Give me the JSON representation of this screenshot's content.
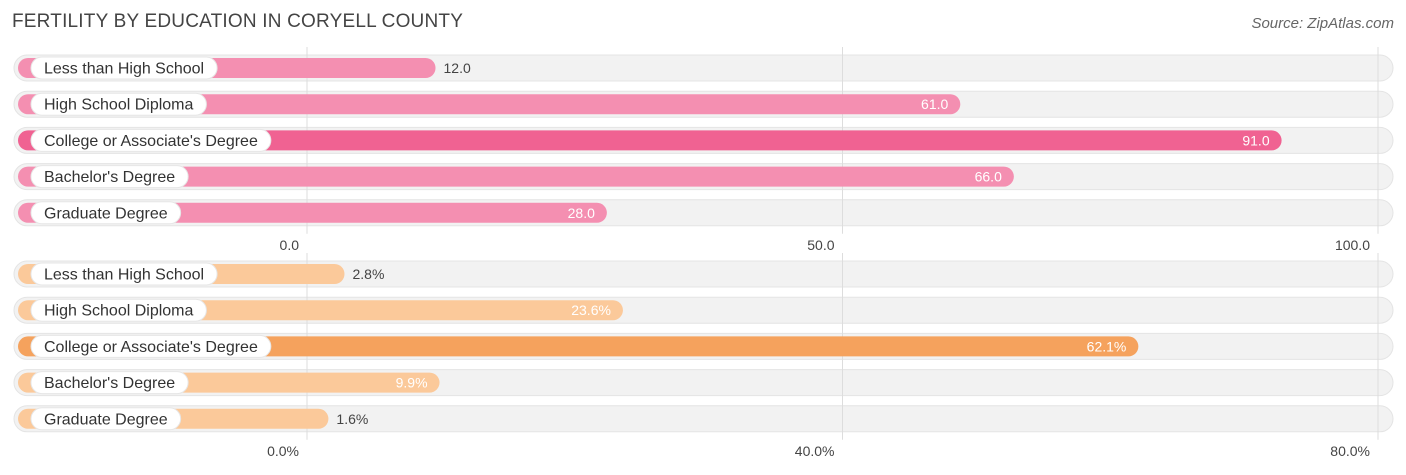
{
  "title": "FERTILITY BY EDUCATION IN CORYELL COUNTY",
  "source": "Source: ZipAtlas.com",
  "chart_data": [
    {
      "type": "bar",
      "orientation": "horizontal",
      "categories": [
        "Less than High School",
        "High School Diploma",
        "College or Associate's Degree",
        "Bachelor's Degree",
        "Graduate Degree"
      ],
      "values": [
        12.0,
        61.0,
        91.0,
        66.0,
        28.0
      ],
      "value_labels": [
        "12.0",
        "61.0",
        "91.0",
        "66.0",
        "28.0"
      ],
      "xlim": [
        0,
        100
      ],
      "ticks": [
        0,
        50,
        100
      ],
      "tick_labels": [
        "0.0",
        "50.0",
        "100.0"
      ],
      "color": "#f06292",
      "highlight_color": "#f06292",
      "base_color": "#f48fb1",
      "grid": true
    },
    {
      "type": "bar",
      "orientation": "horizontal",
      "categories": [
        "Less than High School",
        "High School Diploma",
        "College or Associate's Degree",
        "Bachelor's Degree",
        "Graduate Degree"
      ],
      "values": [
        2.8,
        23.6,
        62.1,
        9.9,
        1.6
      ],
      "value_labels": [
        "2.8%",
        "23.6%",
        "62.1%",
        "9.9%",
        "1.6%"
      ],
      "xlim": [
        0,
        80
      ],
      "ticks": [
        0,
        40,
        80
      ],
      "tick_labels": [
        "0.0%",
        "40.0%",
        "80.0%"
      ],
      "color": "#f5a25d",
      "highlight_color": "#f5a25d",
      "base_color": "#fbc99a",
      "grid": true
    }
  ]
}
